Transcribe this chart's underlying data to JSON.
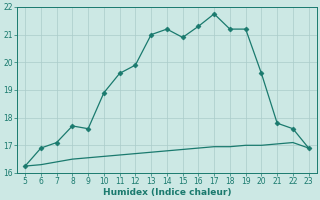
{
  "xlabel": "Humidex (Indice chaleur)",
  "x_values": [
    5,
    6,
    7,
    8,
    9,
    10,
    11,
    12,
    13,
    14,
    15,
    16,
    17,
    18,
    19,
    20,
    21,
    22,
    23
  ],
  "y_line1": [
    16.25,
    16.9,
    17.1,
    17.7,
    17.6,
    18.9,
    19.6,
    19.9,
    21.0,
    21.2,
    20.9,
    21.3,
    21.75,
    21.2,
    21.2,
    19.6,
    17.8,
    17.6,
    16.9
  ],
  "y_line2": [
    16.25,
    16.3,
    16.4,
    16.5,
    16.55,
    16.6,
    16.65,
    16.7,
    16.75,
    16.8,
    16.85,
    16.9,
    16.95,
    16.95,
    17.0,
    17.0,
    17.05,
    17.1,
    16.9
  ],
  "line_color": "#1a7a6e",
  "bg_color": "#cce8e4",
  "grid_color": "#aaccca",
  "marker": "D",
  "marker_size": 2.5,
  "xlim": [
    4.5,
    23.5
  ],
  "ylim": [
    16.0,
    22.0
  ],
  "yticks": [
    16,
    17,
    18,
    19,
    20,
    21,
    22
  ],
  "xticks": [
    5,
    6,
    7,
    8,
    9,
    10,
    11,
    12,
    13,
    14,
    15,
    16,
    17,
    18,
    19,
    20,
    21,
    22,
    23
  ],
  "tick_fontsize": 5.5,
  "xlabel_fontsize": 6.5
}
